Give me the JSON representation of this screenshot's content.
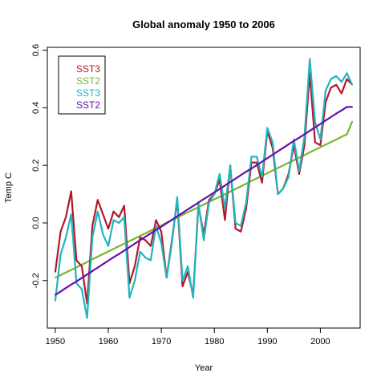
{
  "chart_data": {
    "type": "line",
    "title": "Global anomaly  1950  to  2006",
    "xlabel": "Year",
    "ylabel": "Temp C",
    "xlim": [
      1948.5,
      2007.5
    ],
    "ylim": [
      -0.365,
      0.61
    ],
    "x_ticks": [
      1950,
      1960,
      1970,
      1980,
      1990,
      2000
    ],
    "y_ticks": [
      -0.2,
      0.0,
      0.2,
      0.4,
      0.6
    ],
    "y_tick_labels": [
      "-0.2",
      "0.0",
      "0.2",
      "0.4",
      "0.6"
    ],
    "grid": false,
    "legend_position": "top-left",
    "x": [
      1950,
      1951,
      1952,
      1953,
      1954,
      1955,
      1956,
      1957,
      1958,
      1959,
      1960,
      1961,
      1962,
      1963,
      1964,
      1965,
      1966,
      1967,
      1968,
      1969,
      1970,
      1971,
      1972,
      1973,
      1974,
      1975,
      1976,
      1977,
      1978,
      1979,
      1980,
      1981,
      1982,
      1983,
      1984,
      1985,
      1986,
      1987,
      1988,
      1989,
      1990,
      1991,
      1992,
      1993,
      1994,
      1995,
      1996,
      1997,
      1998,
      1999,
      2000,
      2001,
      2002,
      2003,
      2004,
      2005,
      2006
    ],
    "series": [
      {
        "name": "SST3",
        "color": "#b2182b",
        "values": [
          -0.17,
          -0.03,
          0.02,
          0.11,
          -0.13,
          -0.15,
          -0.28,
          -0.01,
          0.08,
          0.03,
          -0.02,
          0.04,
          0.02,
          0.06,
          -0.21,
          -0.15,
          -0.05,
          -0.06,
          -0.08,
          0.01,
          -0.03,
          -0.19,
          -0.06,
          0.08,
          -0.22,
          -0.17,
          -0.25,
          0.06,
          -0.04,
          0.08,
          0.1,
          0.15,
          0.01,
          0.2,
          -0.02,
          -0.03,
          0.05,
          0.21,
          0.21,
          0.14,
          0.32,
          0.26,
          0.1,
          0.12,
          0.17,
          0.27,
          0.17,
          0.27,
          0.52,
          0.28,
          0.27,
          0.42,
          0.47,
          0.48,
          0.45,
          0.5,
          0.48
        ]
      },
      {
        "name": "SST2",
        "color": "#7ab52f",
        "values": [
          -0.19,
          -0.181,
          -0.172,
          -0.163,
          -0.154,
          -0.145,
          -0.136,
          -0.126,
          -0.117,
          -0.108,
          -0.099,
          -0.09,
          -0.081,
          -0.072,
          -0.063,
          -0.054,
          -0.045,
          -0.036,
          -0.027,
          -0.018,
          -0.009,
          0.001,
          0.01,
          0.019,
          0.028,
          0.037,
          0.046,
          0.055,
          0.064,
          0.073,
          0.082,
          0.091,
          0.1,
          0.109,
          0.118,
          0.127,
          0.136,
          0.146,
          0.155,
          0.164,
          0.173,
          0.182,
          0.191,
          0.2,
          0.209,
          0.218,
          0.227,
          0.236,
          0.245,
          0.254,
          0.263,
          0.272,
          0.281,
          0.29,
          0.299,
          0.308,
          0.352
        ]
      },
      {
        "name": "SST3",
        "color": "#20b5bd",
        "values": [
          -0.27,
          -0.11,
          -0.05,
          0.03,
          -0.21,
          -0.23,
          -0.33,
          -0.05,
          0.04,
          -0.04,
          -0.08,
          0.01,
          0.0,
          0.02,
          -0.26,
          -0.2,
          -0.1,
          -0.12,
          -0.13,
          -0.01,
          -0.07,
          -0.19,
          -0.07,
          0.09,
          -0.2,
          -0.15,
          -0.26,
          0.07,
          -0.06,
          0.07,
          0.1,
          0.17,
          0.05,
          0.2,
          0.0,
          -0.01,
          0.07,
          0.23,
          0.23,
          0.16,
          0.33,
          0.28,
          0.1,
          0.12,
          0.16,
          0.29,
          0.18,
          0.3,
          0.57,
          0.35,
          0.29,
          0.46,
          0.5,
          0.51,
          0.49,
          0.52,
          0.48
        ]
      },
      {
        "name": "SST2",
        "color": "#6a0dad",
        "values": [
          -0.25,
          -0.238,
          -0.226,
          -0.214,
          -0.203,
          -0.191,
          -0.179,
          -0.167,
          -0.155,
          -0.143,
          -0.131,
          -0.119,
          -0.108,
          -0.096,
          -0.084,
          -0.072,
          -0.06,
          -0.048,
          -0.036,
          -0.024,
          -0.013,
          -0.001,
          0.011,
          0.023,
          0.035,
          0.047,
          0.059,
          0.071,
          0.083,
          0.094,
          0.106,
          0.118,
          0.13,
          0.142,
          0.154,
          0.166,
          0.178,
          0.189,
          0.201,
          0.213,
          0.225,
          0.237,
          0.249,
          0.261,
          0.273,
          0.285,
          0.296,
          0.308,
          0.32,
          0.332,
          0.344,
          0.356,
          0.368,
          0.38,
          0.391,
          0.403,
          0.403
        ]
      }
    ]
  }
}
